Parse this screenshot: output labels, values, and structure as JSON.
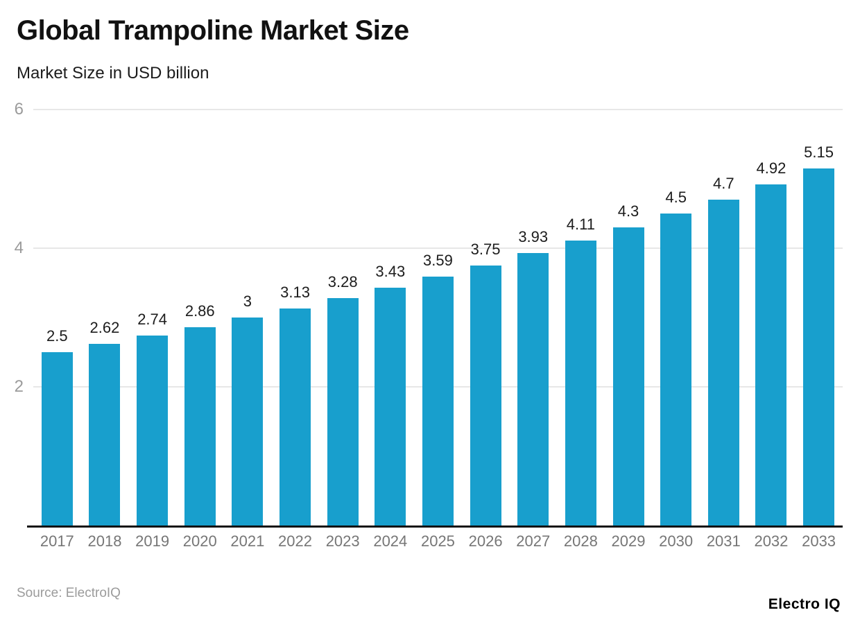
{
  "header": {
    "title": "Global Trampoline Market Size",
    "subtitle": "Market Size in USD billion"
  },
  "footer": {
    "source": "Source: ElectroIQ",
    "brand": "Electro IQ"
  },
  "colors": {
    "bar": "#189fcd",
    "gridline": "#e7e7e7",
    "axis": "#111111",
    "value_label": "#1c1c1c",
    "ytick_label": "#9b9b9b",
    "year_label": "#767676"
  },
  "chart_data": {
    "type": "bar",
    "title": "Global Trampoline Market Size",
    "subtitle": "Market Size in USD billion",
    "categories": [
      "2017",
      "2018",
      "2019",
      "2020",
      "2021",
      "2022",
      "2023",
      "2024",
      "2025",
      "2026",
      "2027",
      "2028",
      "2029",
      "2030",
      "2031",
      "2032",
      "2033"
    ],
    "values": [
      2.5,
      2.62,
      2.74,
      2.86,
      3,
      3.13,
      3.28,
      3.43,
      3.59,
      3.75,
      3.93,
      4.11,
      4.3,
      4.5,
      4.7,
      4.92,
      5.15
    ],
    "ylim": [
      0,
      6
    ],
    "yticks": [
      2,
      4,
      6
    ],
    "grid": "horizontal",
    "legend": "none",
    "value_labels": true,
    "bar_color": "#189fcd",
    "source": "ElectroIQ"
  }
}
